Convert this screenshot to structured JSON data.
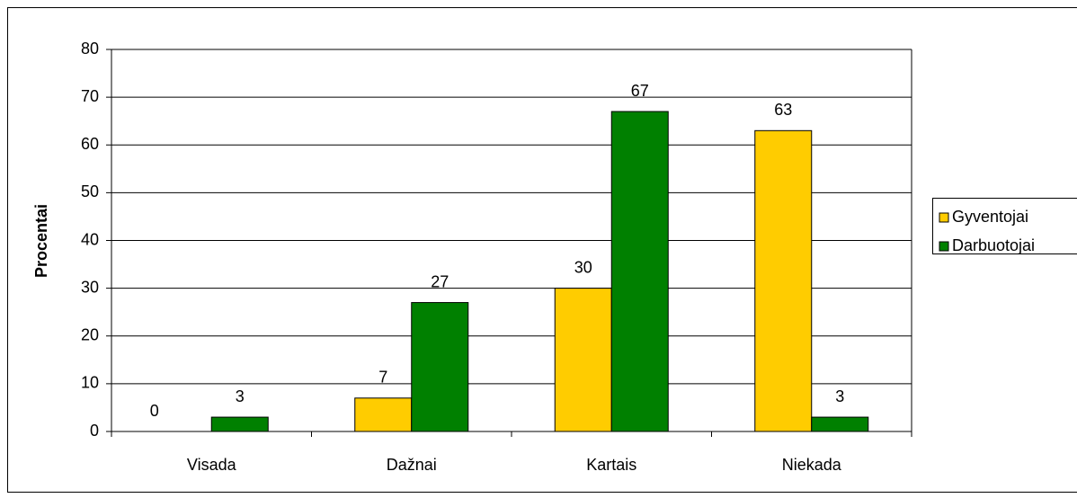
{
  "chart_data": {
    "type": "bar",
    "y_label": "Procentai",
    "categories": [
      "Visada",
      "Dažnai",
      "Kartais",
      "Niekada"
    ],
    "series": [
      {
        "name": "Gyventojai",
        "color": "#ffcc00",
        "values": [
          0,
          7,
          30,
          63
        ]
      },
      {
        "name": "Darbuotojai",
        "color": "#008000",
        "values": [
          3,
          27,
          67,
          3
        ]
      }
    ],
    "ylim": [
      0,
      80
    ],
    "yticks": [
      0,
      10,
      20,
      30,
      40,
      50,
      60,
      70,
      80
    ],
    "grid": true,
    "legend": "right"
  }
}
